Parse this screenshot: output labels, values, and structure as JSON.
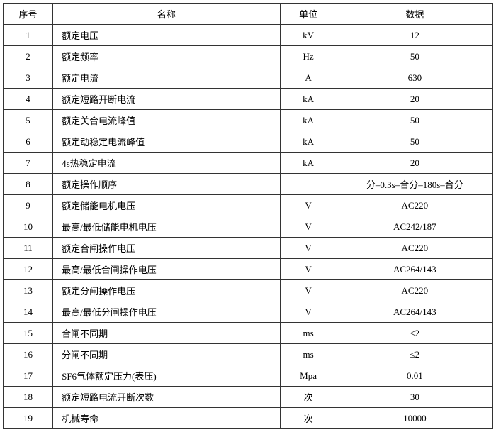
{
  "table": {
    "columns": [
      "序号",
      "名称",
      "单位",
      "数据"
    ],
    "rows": [
      {
        "index": "1",
        "name": "额定电压",
        "unit": "kV",
        "data": "12"
      },
      {
        "index": "2",
        "name": "额定频率",
        "unit": "Hz",
        "data": "50"
      },
      {
        "index": "3",
        "name": "额定电流",
        "unit": "A",
        "data": "630"
      },
      {
        "index": "4",
        "name": "额定短路开断电流",
        "unit": "kA",
        "data": "20"
      },
      {
        "index": "5",
        "name": "额定关合电流峰值",
        "unit": "kA",
        "data": "50"
      },
      {
        "index": "6",
        "name": "额定动稳定电流峰值",
        "unit": "kA",
        "data": "50"
      },
      {
        "index": "7",
        "name": "4s热稳定电流",
        "unit": "kA",
        "data": "20"
      },
      {
        "index": "8",
        "name": "额定操作顺序",
        "unit": "",
        "data": "分–0.3s–合分–180s–合分"
      },
      {
        "index": "9",
        "name": "额定储能电机电压",
        "unit": "V",
        "data": "AC220"
      },
      {
        "index": "10",
        "name": "最高/最低储能电机电压",
        "unit": "V",
        "data": "AC242/187"
      },
      {
        "index": "11",
        "name": "额定合闸操作电压",
        "unit": "V",
        "data": "AC220"
      },
      {
        "index": "12",
        "name": "最高/最低合闸操作电压",
        "unit": "V",
        "data": "AC264/143"
      },
      {
        "index": "13",
        "name": "额定分闸操作电压",
        "unit": "V",
        "data": "AC220"
      },
      {
        "index": "14",
        "name": "最高/最低分闸操作电压",
        "unit": "V",
        "data": "AC264/143"
      },
      {
        "index": "15",
        "name": "合闸不同期",
        "unit": "ms",
        "data": "≤2"
      },
      {
        "index": "16",
        "name": "分闸不同期",
        "unit": "ms",
        "data": "≤2"
      },
      {
        "index": "17",
        "name": "SF6气体额定压力(表压)",
        "unit": "Mpa",
        "data": "0.01"
      },
      {
        "index": "18",
        "name": "额定短路电流开断次数",
        "unit": "次",
        "data": "30"
      },
      {
        "index": "19",
        "name": "机械寿命",
        "unit": "次",
        "data": "10000"
      }
    ],
    "border_color": "#333333",
    "background_color": "#ffffff",
    "font_size": 13
  }
}
